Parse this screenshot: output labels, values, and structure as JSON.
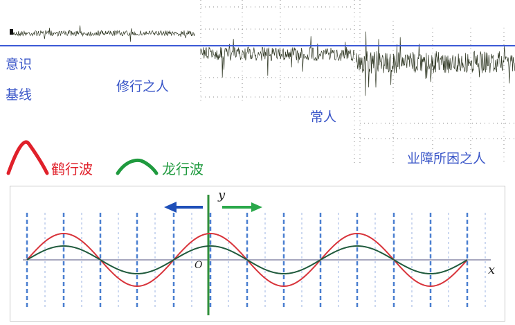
{
  "top": {
    "labels": {
      "consciousness": "意识",
      "baseline": "基线",
      "practitioner": "修行之人",
      "ordinary": "常人",
      "karma": "业障所困之人"
    },
    "baseline_color": "#3b59d6",
    "trace_color": "#2c3420"
  },
  "legend": {
    "crane": {
      "label": "鹤行波",
      "color": "#e0202a",
      "icon": "arch-curve-icon"
    },
    "dragon": {
      "label": "龙行波",
      "color": "#1f9a3e",
      "icon": "arch-curve-icon"
    }
  },
  "graph": {
    "y_label": "y",
    "x_label": "x",
    "origin_label": "O",
    "arrow_left_color": "#1e4fb8",
    "arrow_right_color": "#2aa84a",
    "axis_color": "#2f8f3a",
    "red_wave_color": "#d8343b",
    "dark_wave_color": "#1f5a3c"
  }
}
